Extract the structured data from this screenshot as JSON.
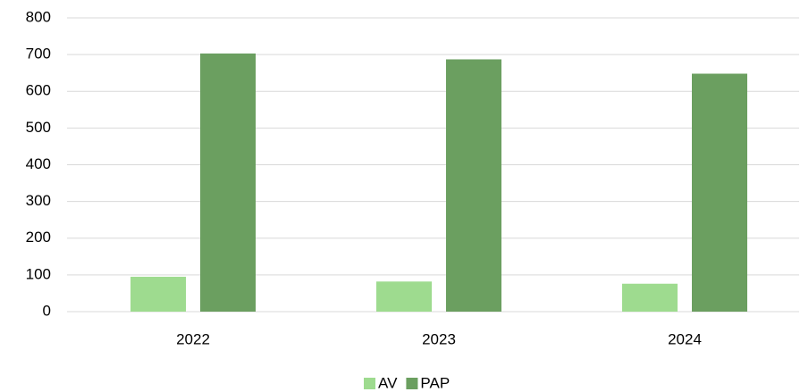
{
  "chart_data": {
    "type": "bar",
    "categories": [
      "2022",
      "2023",
      "2024"
    ],
    "series": [
      {
        "name": "AV",
        "color": "#9edb8f",
        "values": [
          95,
          82,
          76
        ]
      },
      {
        "name": "PAP",
        "color": "#6b9f60",
        "values": [
          703,
          687,
          648
        ]
      }
    ],
    "ylim": [
      0,
      800
    ],
    "yticks": [
      0,
      100,
      200,
      300,
      400,
      500,
      600,
      700,
      800
    ],
    "grid": true,
    "legend": "bottom"
  }
}
